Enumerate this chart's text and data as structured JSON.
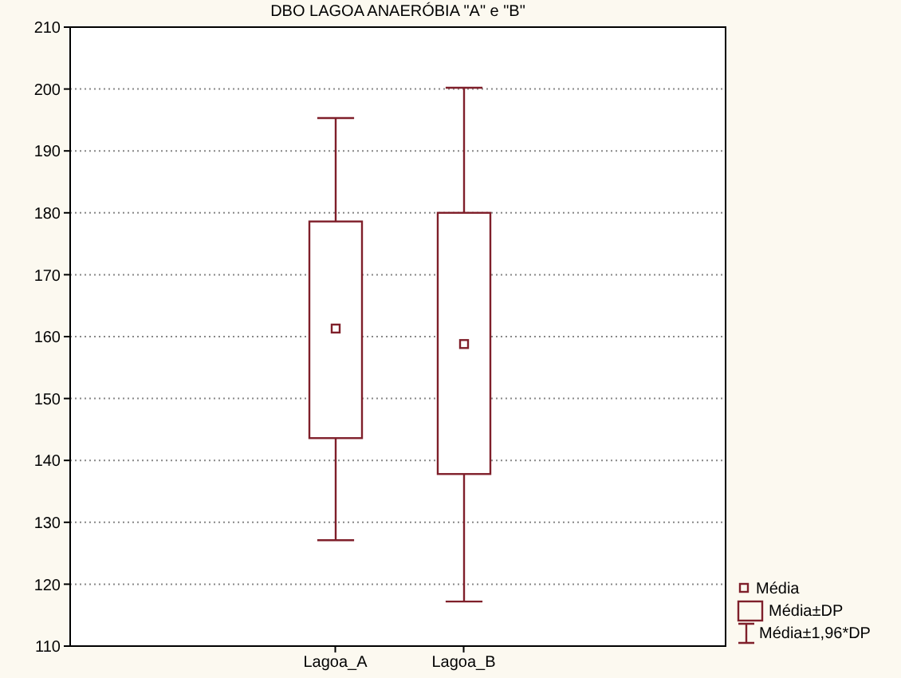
{
  "chart_data": {
    "type": "box",
    "title": "DBO LAGOA ANAERÓBIA \"A\" e \"B\"",
    "categories": [
      "Lagoa_A",
      "Lagoa_B"
    ],
    "color": "#7f1f2a",
    "boxes": [
      {
        "low": 127.1,
        "q1": 143.6,
        "q3": 178.6,
        "high": 195.3,
        "mean": 161.3
      },
      {
        "low": 117.2,
        "q1": 137.8,
        "q3": 180.0,
        "high": 200.2,
        "mean": 158.8
      }
    ],
    "ylim": [
      110,
      210
    ],
    "yticks": [
      110,
      120,
      130,
      140,
      150,
      160,
      170,
      180,
      190,
      200,
      210
    ],
    "grid": "y",
    "annotations": [
      "Média",
      "Média±DP",
      "Média±1,96*DP"
    ]
  }
}
